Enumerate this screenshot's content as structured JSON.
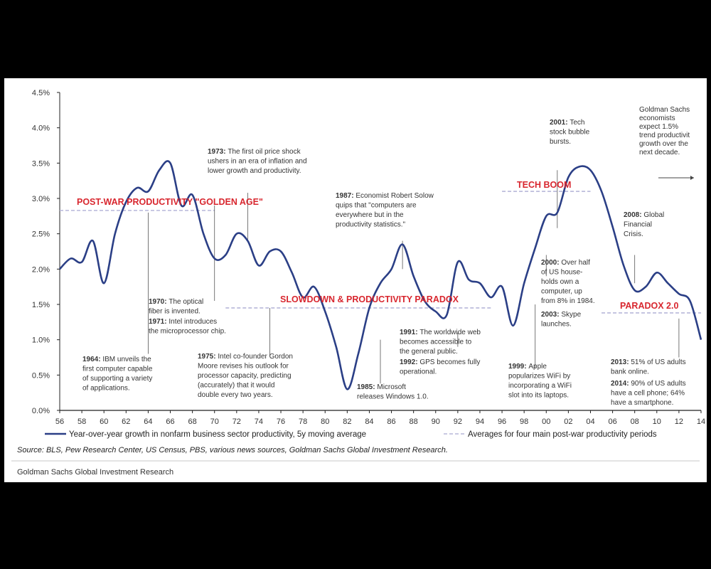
{
  "chart_data": {
    "type": "line",
    "title": "",
    "xlabel": "",
    "ylabel": "",
    "ylim": [
      0,
      4.5
    ],
    "xlim": [
      1956,
      2014
    ],
    "y_ticks": [
      "0.0%",
      "0.5%",
      "1.0%",
      "1.5%",
      "2.0%",
      "2.5%",
      "3.0%",
      "3.5%",
      "4.0%",
      "4.5%"
    ],
    "x_ticks": [
      "56",
      "58",
      "60",
      "62",
      "64",
      "66",
      "68",
      "70",
      "72",
      "74",
      "76",
      "78",
      "80",
      "82",
      "84",
      "86",
      "88",
      "90",
      "92",
      "94",
      "96",
      "98",
      "00",
      "02",
      "04",
      "06",
      "08",
      "10",
      "12",
      "14"
    ],
    "series": [
      {
        "name": "Year-over-year growth in nonfarm business sector productivity, 5y moving average",
        "color": "#2b3f86",
        "x": [
          1956,
          1957,
          1958,
          1959,
          1960,
          1961,
          1962,
          1963,
          1964,
          1965,
          1966,
          1967,
          1968,
          1969,
          1970,
          1971,
          1972,
          1973,
          1974,
          1975,
          1976,
          1977,
          1978,
          1979,
          1980,
          1981,
          1982,
          1983,
          1984,
          1985,
          1986,
          1987,
          1988,
          1989,
          1990,
          1991,
          1992,
          1993,
          1994,
          1995,
          1996,
          1997,
          1998,
          1999,
          2000,
          2001,
          2002,
          2003,
          2004,
          2005,
          2006,
          2007,
          2008,
          2009,
          2010,
          2011,
          2012,
          2013,
          2014
        ],
        "y": [
          2.0,
          2.15,
          2.1,
          2.4,
          1.8,
          2.5,
          2.95,
          3.15,
          3.1,
          3.4,
          3.5,
          2.9,
          3.05,
          2.5,
          2.15,
          2.2,
          2.5,
          2.4,
          2.05,
          2.25,
          2.25,
          1.95,
          1.6,
          1.75,
          1.4,
          0.9,
          0.3,
          0.8,
          1.45,
          1.8,
          2.0,
          2.35,
          1.9,
          1.55,
          1.4,
          1.35,
          2.1,
          1.85,
          1.8,
          1.6,
          1.75,
          1.2,
          1.8,
          2.3,
          2.75,
          2.8,
          3.3,
          3.45,
          3.4,
          3.1,
          2.6,
          2.05,
          1.7,
          1.75,
          1.95,
          1.8,
          1.65,
          1.55,
          1.0
        ]
      }
    ],
    "period_averages": [
      {
        "name": "POST-WAR PRODUCTIVITY \"GOLDEN AGE\"",
        "start": 1956,
        "end": 1970,
        "value": 2.83
      },
      {
        "name": "SLOWDOWN & PRODUCTIVITY PARADOX",
        "start": 1971,
        "end": 1995,
        "value": 1.45
      },
      {
        "name": "TECH BOOM",
        "start": 1996,
        "end": 2004,
        "value": 3.1
      },
      {
        "name": "PARADOX 2.0",
        "start": 2005,
        "end": 2014,
        "value": 1.38
      }
    ],
    "era_labels": [
      {
        "text": "POST-WAR PRODUCTIVITY \"GOLDEN AGE\"",
        "x": 1956.5,
        "y": 2.87
      },
      {
        "text": "SLOWDOWN & PRODUCTIVITY PARADOX",
        "x": 1786.0,
        "y": 1.5
      },
      {
        "text": "TECH BOOM",
        "x": 1998.5,
        "y": 3.13
      },
      {
        "text": "PARADOX 2.0",
        "x": 2005.6,
        "y": 1.42
      }
    ],
    "annotations": [
      {
        "year": "1964",
        "lines": [
          "IBM unveils the",
          "first computer capable",
          "of supporting a variety",
          "of applications."
        ]
      },
      {
        "year": "1970",
        "lines": [
          "The optical",
          "fiber is invented."
        ]
      },
      {
        "year": "1971",
        "lines": [
          "Intel introduces",
          "the microprocessor chip."
        ]
      },
      {
        "year": "1973",
        "lines": [
          "The first oil price shock",
          "ushers in an era of inflation and",
          "lower growth and productivity."
        ]
      },
      {
        "year": "1975",
        "lines": [
          "Intel co-founder Gordon",
          "Moore revises his outlook for",
          "processor capacity, predicting",
          "(accurately) that it would",
          "double every two years."
        ]
      },
      {
        "year": "1985",
        "lines": [
          "Microsoft",
          "releases Windows 1.0."
        ]
      },
      {
        "year": "1987",
        "lines": [
          "Economist Robert Solow",
          "quips that \"computers are",
          "everywhere but in the",
          "productivity statistics.\""
        ]
      },
      {
        "year": "1991",
        "lines": [
          "The worldwide web",
          "becomes accessible to",
          "the general public."
        ]
      },
      {
        "year": "1992",
        "lines": [
          "GPS becomes fully",
          "operational."
        ]
      },
      {
        "year": "1999",
        "lines": [
          "Apple",
          "popularizes WiFi by",
          "incorporating a WiFi",
          "slot into its laptops."
        ]
      },
      {
        "year": "2000",
        "lines": [
          "Over half",
          "of US house-",
          "holds own a",
          "computer, up",
          "from 8% in 1984."
        ]
      },
      {
        "year": "2001",
        "lines": [
          "Tech",
          "stock bubble",
          "bursts."
        ]
      },
      {
        "year": "2003",
        "lines": [
          "Skype",
          "launches."
        ]
      },
      {
        "year": "2008",
        "lines": [
          "Global",
          "Financial",
          "Crisis."
        ]
      },
      {
        "year": "2013",
        "lines": [
          "51% of US adults",
          "bank online."
        ]
      },
      {
        "year": "2014",
        "lines": [
          "90% of US adults",
          "have a cell phone; 64%",
          "have a smartphone."
        ]
      }
    ],
    "forecast_note": [
      "Goldman Sachs",
      "economists",
      "expect 1.5%",
      "trend productivit",
      "growth over the",
      "next decade."
    ],
    "legend": {
      "line": "Year-over-year growth in nonfarm business sector productivity, 5y moving average",
      "dashed": "Averages for four main post-war productivity periods"
    },
    "source": "Source: BLS, Pew Research Center, US Census, PBS, various news sources, Goldman Sachs Global Investment Research.",
    "footer": "Goldman Sachs Global Investment Research",
    "colors": {
      "line": "#2b3f86",
      "era": "#d8262e",
      "dashed": "#b7b7d9",
      "connector": "#555555"
    }
  }
}
